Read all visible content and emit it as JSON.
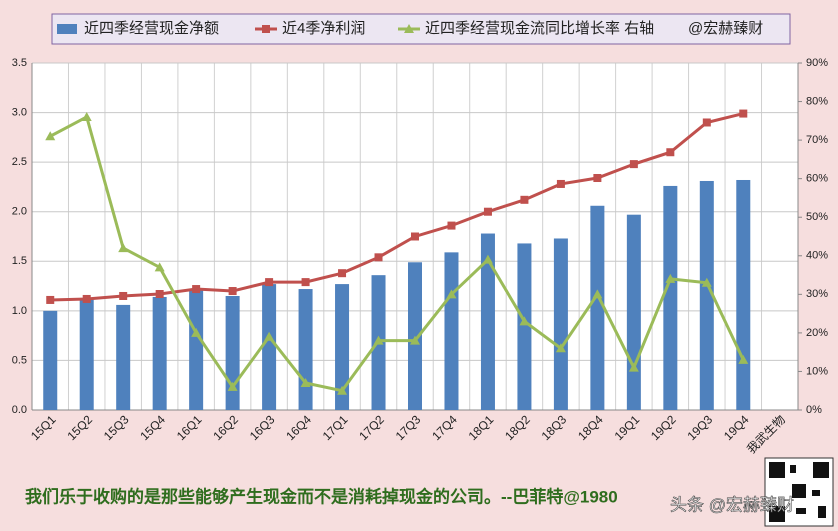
{
  "chart_data": {
    "type": "bar-line",
    "categories": [
      "15Q1",
      "15Q2",
      "15Q3",
      "15Q4",
      "16Q1",
      "16Q2",
      "16Q3",
      "16Q4",
      "17Q1",
      "17Q2",
      "17Q3",
      "17Q4",
      "18Q1",
      "18Q2",
      "18Q3",
      "18Q4",
      "19Q1",
      "19Q2",
      "19Q3",
      "19Q4",
      "我武生物"
    ],
    "series": [
      {
        "name": "近四季经营现金净额",
        "type": "bar",
        "color": "#4f81bd",
        "values": [
          1.0,
          1.11,
          1.06,
          1.14,
          1.21,
          1.15,
          1.27,
          1.22,
          1.27,
          1.36,
          1.49,
          1.59,
          1.78,
          1.68,
          1.73,
          2.06,
          1.97,
          2.26,
          2.31,
          2.32,
          null
        ]
      },
      {
        "name": "近4季净利润",
        "type": "line",
        "marker": "square",
        "color": "#c0504d",
        "values": [
          1.11,
          1.12,
          1.15,
          1.17,
          1.22,
          1.2,
          1.29,
          1.29,
          1.38,
          1.54,
          1.75,
          1.86,
          2.0,
          2.12,
          2.28,
          2.34,
          2.48,
          2.6,
          2.9,
          2.99,
          null
        ]
      },
      {
        "name": "近四季经营现金流同比增长率 右轴",
        "type": "line",
        "marker": "triangle",
        "axis": "y2",
        "color": "#9bbb59",
        "values": [
          71,
          76,
          42,
          37,
          20,
          6,
          19,
          7,
          5,
          18,
          18,
          30,
          39,
          23,
          16,
          30,
          11,
          34,
          33,
          13,
          null
        ]
      }
    ],
    "legend_note": "@宏赫臻财",
    "ylim": [
      0,
      3.5
    ],
    "yticks": [
      {
        "value": 0,
        "label": "0.0"
      },
      0.5,
      {
        "value": 1,
        "label": "1.0"
      },
      1.5,
      {
        "value": 2,
        "label": "2.0"
      },
      2.5,
      {
        "value": 3,
        "label": "3.0"
      },
      3.5
    ],
    "y2lim": [
      0,
      90
    ],
    "y2ticks": [
      {
        "value": 0,
        "label": "0%"
      },
      {
        "value": 10,
        "label": "10%"
      },
      {
        "value": 20,
        "label": "20%"
      },
      {
        "value": 30,
        "label": "30%"
      },
      {
        "value": 40,
        "label": "40%"
      },
      {
        "value": 50,
        "label": "50%"
      },
      {
        "value": 60,
        "label": "60%"
      },
      {
        "value": 70,
        "label": "70%"
      },
      {
        "value": 80,
        "label": "80%"
      },
      {
        "value": 90,
        "label": "90%"
      }
    ],
    "grid": true,
    "quote": "我们乐于收购的是那些能够产生现金而不是消耗掉现金的公司。--巴菲特@1980",
    "watermark": "头条 @宏赫臻财"
  }
}
